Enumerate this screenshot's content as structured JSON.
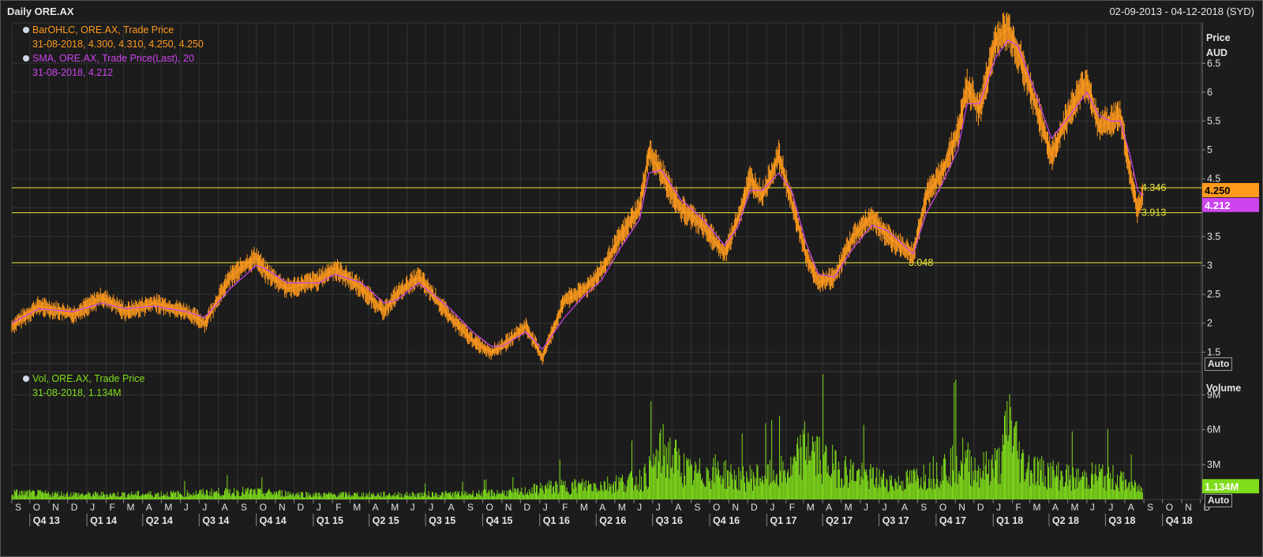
{
  "header": {
    "title": "Daily ORE.AX",
    "date_range": "02-09-2013 - 04-12-2018 (SYD)"
  },
  "colors": {
    "price": "#ff9a1c",
    "sma": "#cc44ee",
    "volume": "#7fdc1a",
    "level": "#e8e63a",
    "background": "#1c1c1c",
    "grid": "#333333"
  },
  "legend": {
    "ohlc_name": "BarOHLC, ORE.AX, Trade Price",
    "ohlc_values": "31-08-2018, 4.300, 4.310, 4.250, 4.250",
    "sma_name": "SMA, ORE.AX, Trade Price(Last),  20",
    "sma_values": "31-08-2018, 4.212",
    "vol_name": "Vol, ORE.AX, Trade Price",
    "vol_values": "31-08-2018, 1.134M"
  },
  "price_axis": {
    "title_line1": "Price",
    "title_line2": "AUD",
    "auto_label": "Auto",
    "last_price_label": "4.250",
    "last_sma_label": "4.212"
  },
  "volume_axis": {
    "title": "Volume",
    "auto_label": "Auto",
    "last_volume_label": "1.134M"
  },
  "levels": [
    {
      "value": 4.346,
      "label": "4.346"
    },
    {
      "value": 3.913,
      "label": "3.913"
    },
    {
      "value": 3.048,
      "label": "3.048"
    }
  ],
  "chart_data": {
    "type": "line",
    "series": [
      {
        "name": "BarOHLC, ORE.AX, Trade Price",
        "x": [
          "2013-09-02",
          "2013-10-15",
          "2013-12-10",
          "2014-01-25",
          "2014-03-05",
          "2014-04-20",
          "2014-06-10",
          "2014-07-10",
          "2014-08-20",
          "2014-10-01",
          "2014-10-15",
          "2014-11-20",
          "2015-01-10",
          "2015-02-05",
          "2015-03-20",
          "2015-04-25",
          "2015-05-15",
          "2015-06-20",
          "2015-08-10",
          "2015-09-15",
          "2015-10-15",
          "2015-11-01",
          "2015-12-10",
          "2016-01-05",
          "2016-02-10",
          "2016-03-10",
          "2016-04-10",
          "2016-05-10",
          "2016-06-10",
          "2016-06-25",
          "2016-07-15",
          "2016-08-15",
          "2016-09-20",
          "2016-10-25",
          "2016-11-15",
          "2016-12-05",
          "2016-12-25",
          "2017-01-20",
          "2017-02-10",
          "2017-03-05",
          "2017-03-25",
          "2017-04-20",
          "2017-05-20",
          "2017-06-20",
          "2017-07-15",
          "2017-08-10",
          "2017-08-25",
          "2017-09-15",
          "2017-10-10",
          "2017-11-05",
          "2017-11-20",
          "2017-12-10",
          "2018-01-05",
          "2018-01-25",
          "2018-02-10",
          "2018-03-10",
          "2018-04-05",
          "2018-05-05",
          "2018-06-01",
          "2018-06-20",
          "2018-07-10",
          "2018-07-25",
          "2018-08-10",
          "2018-08-22",
          "2018-08-31"
        ],
        "y": [
          1.95,
          2.3,
          2.15,
          2.45,
          2.2,
          2.35,
          2.2,
          2.0,
          2.8,
          3.15,
          2.9,
          2.6,
          2.75,
          2.95,
          2.6,
          2.2,
          2.5,
          2.8,
          2.1,
          1.7,
          1.5,
          1.6,
          1.95,
          1.4,
          2.4,
          2.55,
          2.9,
          3.5,
          4.0,
          4.95,
          4.6,
          4.0,
          3.7,
          3.2,
          3.8,
          4.5,
          4.2,
          4.9,
          4.1,
          3.2,
          2.7,
          2.8,
          3.5,
          3.85,
          3.5,
          3.3,
          3.2,
          4.2,
          4.6,
          5.3,
          6.1,
          5.7,
          6.9,
          7.1,
          6.7,
          5.8,
          4.9,
          5.7,
          6.2,
          5.4,
          5.5,
          5.6,
          4.6,
          3.95,
          4.25
        ]
      },
      {
        "name": "SMA, ORE.AX, Trade Price(Last),  20",
        "x": [
          "2013-09-02",
          "2013-10-15",
          "2013-12-10",
          "2014-01-25",
          "2014-03-05",
          "2014-04-20",
          "2014-06-10",
          "2014-07-10",
          "2014-08-20",
          "2014-10-01",
          "2014-10-15",
          "2014-11-20",
          "2015-01-10",
          "2015-02-05",
          "2015-03-20",
          "2015-04-25",
          "2015-05-15",
          "2015-06-20",
          "2015-08-10",
          "2015-09-15",
          "2015-10-15",
          "2015-11-01",
          "2015-12-10",
          "2016-01-05",
          "2016-02-10",
          "2016-03-10",
          "2016-04-10",
          "2016-05-10",
          "2016-06-10",
          "2016-06-25",
          "2016-07-15",
          "2016-08-15",
          "2016-09-20",
          "2016-10-25",
          "2016-11-15",
          "2016-12-05",
          "2016-12-25",
          "2017-01-20",
          "2017-02-10",
          "2017-03-05",
          "2017-03-25",
          "2017-04-20",
          "2017-05-20",
          "2017-06-20",
          "2017-07-15",
          "2017-08-10",
          "2017-08-25",
          "2017-09-15",
          "2017-10-10",
          "2017-11-05",
          "2017-11-20",
          "2017-12-10",
          "2018-01-05",
          "2018-01-25",
          "2018-02-10",
          "2018-03-10",
          "2018-04-05",
          "2018-05-05",
          "2018-06-01",
          "2018-06-20",
          "2018-07-10",
          "2018-07-25",
          "2018-08-10",
          "2018-08-22",
          "2018-08-31"
        ],
        "y": [
          2.0,
          2.25,
          2.2,
          2.35,
          2.25,
          2.3,
          2.2,
          2.1,
          2.6,
          3.0,
          2.95,
          2.7,
          2.7,
          2.85,
          2.7,
          2.35,
          2.4,
          2.7,
          2.25,
          1.85,
          1.6,
          1.6,
          1.85,
          1.55,
          2.1,
          2.45,
          2.75,
          3.3,
          3.8,
          4.6,
          4.65,
          4.15,
          3.8,
          3.35,
          3.65,
          4.3,
          4.3,
          4.6,
          4.3,
          3.4,
          2.85,
          2.8,
          3.3,
          3.7,
          3.6,
          3.35,
          3.2,
          3.9,
          4.4,
          5.0,
          5.8,
          5.8,
          6.6,
          6.9,
          6.8,
          6.0,
          5.2,
          5.6,
          6.0,
          5.6,
          5.5,
          5.5,
          4.9,
          4.3,
          4.212
        ]
      },
      {
        "name": "Vol, ORE.AX, Trade Price",
        "x": [
          "2013-09-02",
          "2014-01-01",
          "2014-06-01",
          "2014-09-01",
          "2015-01-01",
          "2015-06-01",
          "2015-09-01",
          "2015-12-01",
          "2016-01-15",
          "2016-04-15",
          "2016-06-15",
          "2016-07-20",
          "2016-09-01",
          "2016-10-15",
          "2016-11-15",
          "2017-01-01",
          "2017-02-10",
          "2017-03-10",
          "2017-03-20",
          "2017-04-20",
          "2017-06-01",
          "2017-08-01",
          "2017-09-15",
          "2017-10-15",
          "2017-11-10",
          "2017-12-10",
          "2018-01-15",
          "2018-01-26",
          "2018-02-15",
          "2018-03-15",
          "2018-04-15",
          "2018-05-20",
          "2018-06-20",
          "2018-07-20",
          "2018-08-31"
        ],
        "y": [
          0.8,
          0.6,
          0.7,
          1.0,
          0.6,
          0.6,
          0.7,
          0.9,
          1.5,
          1.8,
          2.5,
          6.0,
          3.0,
          3.5,
          2.5,
          3.0,
          3.5,
          7.0,
          5.5,
          4.0,
          3.0,
          2.0,
          3.0,
          4.0,
          5.0,
          3.5,
          4.5,
          10.3,
          4.5,
          3.5,
          3.0,
          2.5,
          3.0,
          2.5,
          1.134
        ]
      }
    ],
    "x_range": [
      "2013-09-02",
      "2018-12-04"
    ],
    "price_ylim": [
      1.3,
      7.2
    ],
    "price_ticks": [
      "1.5",
      "2",
      "2.5",
      "3",
      "3.5",
      "4",
      "4.5",
      "5",
      "5.5",
      "6",
      "6.5"
    ],
    "volume_ylim": [
      0,
      11
    ],
    "volume_ticks": [
      "3M",
      "6M",
      "9M"
    ],
    "month_labels": [
      "S",
      "O",
      "N",
      "D",
      "J",
      "F",
      "M",
      "A",
      "M",
      "J",
      "J",
      "A",
      "S",
      "O",
      "N",
      "D",
      "J",
      "F",
      "M",
      "A",
      "M",
      "J",
      "J",
      "A",
      "S",
      "O",
      "N",
      "D",
      "J",
      "F",
      "M",
      "A",
      "M",
      "J",
      "J",
      "A",
      "S",
      "O",
      "N",
      "D",
      "J",
      "F",
      "M",
      "A",
      "M",
      "J",
      "J",
      "A",
      "S",
      "O",
      "N",
      "D",
      "J",
      "F",
      "M",
      "A",
      "M",
      "J",
      "J",
      "A",
      "S",
      "O",
      "N",
      "D"
    ],
    "quarter_labels": [
      "Q4 13",
      "Q1 14",
      "Q2 14",
      "Q3 14",
      "Q4 14",
      "Q1 15",
      "Q2 15",
      "Q3 15",
      "Q4 15",
      "Q1 16",
      "Q2 16",
      "Q3 16",
      "Q4 16",
      "Q1 17",
      "Q2 17",
      "Q3 17",
      "Q4 17",
      "Q1 18",
      "Q2 18",
      "Q3 18",
      "Q4 18"
    ],
    "grid": true
  }
}
